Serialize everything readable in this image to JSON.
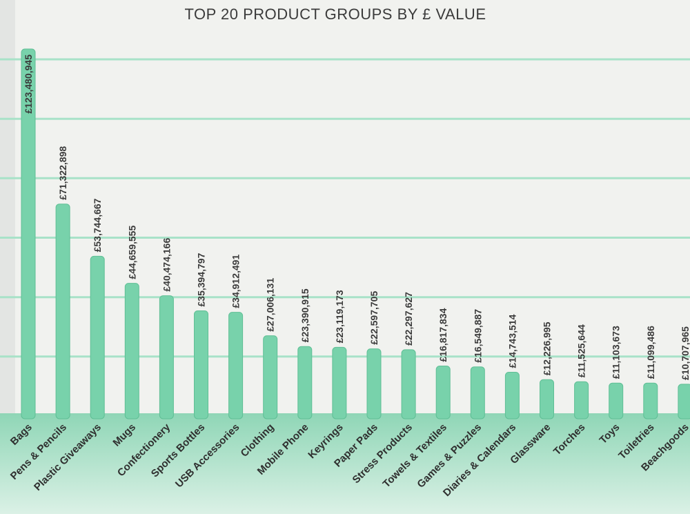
{
  "colors": {
    "bar": "#78d2ab",
    "bar_stroke": "#5fbf95",
    "grid": "#a8e2c8",
    "plot_background": "#f1f2ef",
    "axis_band_top": "#8fd6b6",
    "axis_band_bottom": "#dbf1e6",
    "label_text": "#3a3a3a"
  },
  "chart_data": {
    "type": "bar",
    "title": "TOP 20 PRODUCT GROUPS BY £ VALUE",
    "xlabel": "",
    "ylabel": "",
    "ylim": [
      0,
      150000000
    ],
    "grid": true,
    "grid_step": 20000000,
    "categories": [
      "Bags",
      "Pens & Pencils",
      "Plastic Giveaways",
      "Mugs",
      "Confectionery",
      "Sports Bottles",
      "USB Accessories",
      "Clothing",
      "Mobile Phone",
      "Keyrings",
      "Paper Pads",
      "Stress Products",
      "Towels & Textiles",
      "Games & Puzzles",
      "Diaries & Calendars",
      "Glassware",
      "Torches",
      "Toys",
      "Toiletries",
      "Beachgoods"
    ],
    "values": [
      123480945,
      71322898,
      53744667,
      44659555,
      40474166,
      35394797,
      34912491,
      27006131,
      23390915,
      23119173,
      22597705,
      22297627,
      16817834,
      16549887,
      14743514,
      12226995,
      11525644,
      11103673,
      11099486,
      10707965
    ],
    "value_labels": [
      "£123,480,945",
      "£71,322,898",
      "£53,744,667",
      "£44,659,555",
      "£40,474,166",
      "£35,394,797",
      "£34,912,491",
      "£27,006,131",
      "£23,390,915",
      "£23,119,173",
      "£22,597,705",
      "£22,297,627",
      "£16,817,834",
      "£16,549,887",
      "£14,743,514",
      "£12,226,995",
      "£11,525,644",
      "£11,103,673",
      "£11,099,486",
      "£10,707,965"
    ]
  }
}
